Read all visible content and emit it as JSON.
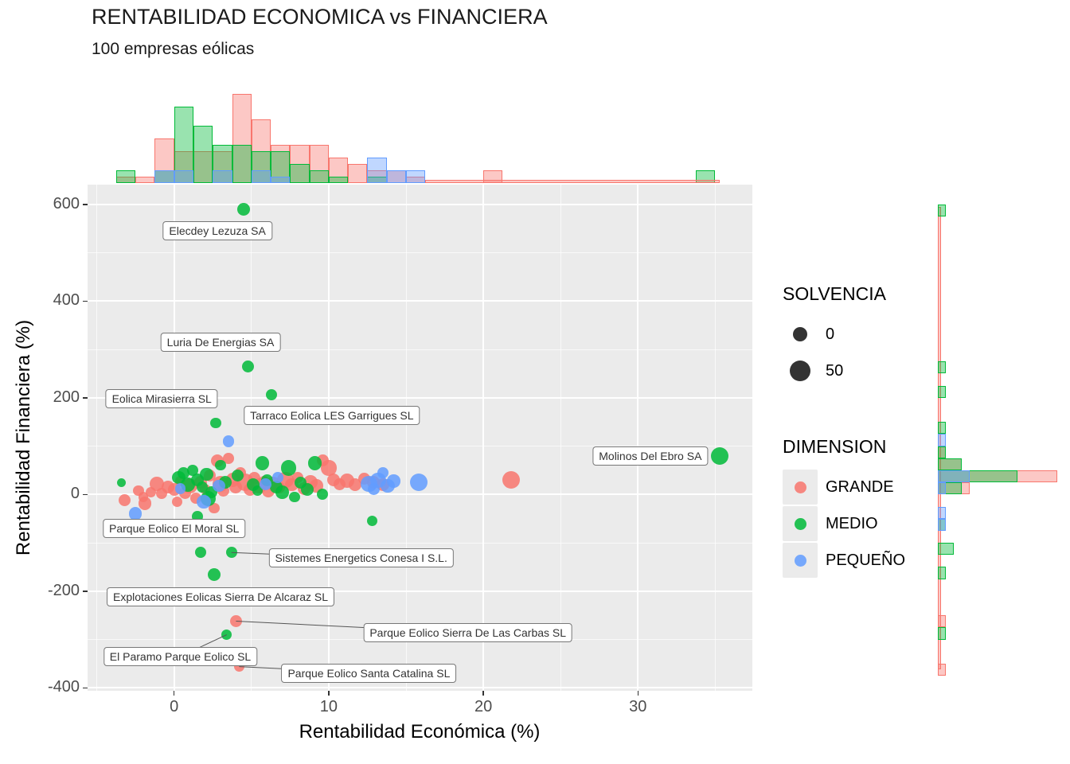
{
  "chart_data": {
    "type": "scatter",
    "title": "RENTABILIDAD ECONOMICA vs FINANCIERA",
    "subtitle": "100 empresas eólicas",
    "xlabel": "Rentabilidad Económica (%)",
    "ylabel": "Rentabilidad Financiera (%)",
    "x_ticks": [
      0,
      10,
      20,
      30
    ],
    "y_ticks": [
      600,
      400,
      200,
      0,
      -200,
      -400
    ],
    "xlim": [
      -5.6,
      37.4
    ],
    "ylim": [
      -406,
      641
    ],
    "grid": true,
    "legend_position": "right",
    "panel_bg": "#EBEBEB",
    "grid_color": "#FFFFFF",
    "size_legend": {
      "title": "SOLVENCIA",
      "items": [
        {
          "label": "0"
        },
        {
          "label": "50"
        }
      ]
    },
    "color_legend": {
      "title": "DIMENSION",
      "items": [
        {
          "label": "GRANDE",
          "color": "#F8766D"
        },
        {
          "label": "MEDIO",
          "color": "#00BA38"
        },
        {
          "label": "PEQUEÑO",
          "color": "#619CFF"
        }
      ]
    },
    "point_format": [
      "x",
      "y",
      "dimension",
      "solvencia"
    ],
    "points": [
      [
        -3.2,
        -12,
        "GRANDE",
        25
      ],
      [
        -2.3,
        8,
        "GRANDE",
        20
      ],
      [
        -2,
        -5,
        "GRANDE",
        15
      ],
      [
        -1.9,
        -18,
        "GRANDE",
        30
      ],
      [
        -1.5,
        5,
        "GRANDE",
        18
      ],
      [
        -1.1,
        22,
        "GRANDE",
        35
      ],
      [
        -0.8,
        2,
        "GRANDE",
        22
      ],
      [
        -0.4,
        15,
        "GRANDE",
        28
      ],
      [
        0,
        10,
        "GRANDE",
        30
      ],
      [
        0.2,
        -15,
        "GRANDE",
        20
      ],
      [
        0.4,
        28,
        "GRANDE",
        20
      ],
      [
        0.7,
        3,
        "GRANDE",
        25
      ],
      [
        1,
        18,
        "GRANDE",
        40
      ],
      [
        1.4,
        -8,
        "GRANDE",
        22
      ],
      [
        1.7,
        25,
        "GRANDE",
        30
      ],
      [
        2,
        12,
        "GRANDE",
        18
      ],
      [
        2.3,
        40,
        "GRANDE",
        25
      ],
      [
        2.6,
        -28,
        "GRANDE",
        20
      ],
      [
        2.8,
        70,
        "GRANDE",
        30
      ],
      [
        3,
        22,
        "GRANDE",
        45
      ],
      [
        3.2,
        8,
        "GRANDE",
        25
      ],
      [
        3.5,
        75,
        "GRANDE",
        20
      ],
      [
        3.8,
        30,
        "GRANDE",
        35
      ],
      [
        4,
        15,
        "GRANDE",
        28
      ],
      [
        4.3,
        45,
        "GRANDE",
        22
      ],
      [
        4.6,
        25,
        "GRANDE",
        50
      ],
      [
        4.9,
        10,
        "GRANDE",
        30
      ],
      [
        5.2,
        35,
        "GRANDE",
        25
      ],
      [
        5.5,
        18,
        "GRANDE",
        40
      ],
      [
        5.8,
        28,
        "GRANDE",
        20
      ],
      [
        6.1,
        8,
        "GRANDE",
        30
      ],
      [
        6.4,
        22,
        "GRANDE",
        35
      ],
      [
        6.8,
        15,
        "GRANDE",
        25
      ],
      [
        7.2,
        30,
        "GRANDE",
        45
      ],
      [
        7.6,
        20,
        "GRANDE",
        30
      ],
      [
        8,
        35,
        "GRANDE",
        22
      ],
      [
        8.4,
        12,
        "GRANDE",
        28
      ],
      [
        8.8,
        25,
        "GRANDE",
        35
      ],
      [
        9.2,
        18,
        "GRANDE",
        30
      ],
      [
        9.6,
        70,
        "GRANDE",
        25
      ],
      [
        10,
        55,
        "GRANDE",
        40
      ],
      [
        10.3,
        30,
        "GRANDE",
        30
      ],
      [
        10.7,
        22,
        "GRANDE",
        25
      ],
      [
        11.2,
        28,
        "GRANDE",
        35
      ],
      [
        11.7,
        20,
        "GRANDE",
        30
      ],
      [
        12.3,
        32,
        "GRANDE",
        25
      ],
      [
        12.9,
        25,
        "GRANDE",
        30
      ],
      [
        13.5,
        20,
        "GRANDE",
        28
      ],
      [
        21.8,
        30,
        "GRANDE",
        50
      ],
      [
        4,
        -262,
        "GRANDE",
        25
      ],
      [
        4.2,
        -356,
        "GRANDE",
        20
      ],
      [
        -3.4,
        25,
        "MEDIO",
        12
      ],
      [
        0.3,
        35,
        "MEDIO",
        30
      ],
      [
        0.6,
        45,
        "MEDIO",
        25
      ],
      [
        0.9,
        20,
        "MEDIO",
        35
      ],
      [
        1.2,
        50,
        "MEDIO",
        20
      ],
      [
        1.5,
        30,
        "MEDIO",
        28
      ],
      [
        1.8,
        15,
        "MEDIO",
        22
      ],
      [
        2.1,
        42,
        "MEDIO",
        30
      ],
      [
        2.2,
        -8,
        "MEDIO",
        40
      ],
      [
        2.4,
        5,
        "MEDIO",
        25
      ],
      [
        2.7,
        148,
        "MEDIO",
        20
      ],
      [
        3,
        60,
        "MEDIO",
        18
      ],
      [
        3.3,
        25,
        "MEDIO",
        30
      ],
      [
        3.7,
        -120,
        "MEDIO",
        22
      ],
      [
        4.1,
        40,
        "MEDIO",
        25
      ],
      [
        4.5,
        590,
        "MEDIO",
        28
      ],
      [
        4.8,
        265,
        "MEDIO",
        25
      ],
      [
        5.1,
        20,
        "MEDIO",
        30
      ],
      [
        5.4,
        8,
        "MEDIO",
        20
      ],
      [
        5.7,
        65,
        "MEDIO",
        35
      ],
      [
        6,
        30,
        "MEDIO",
        25
      ],
      [
        6.3,
        207,
        "MEDIO",
        22
      ],
      [
        6.6,
        15,
        "MEDIO",
        28
      ],
      [
        7,
        5,
        "MEDIO",
        30
      ],
      [
        7.4,
        55,
        "MEDIO",
        40
      ],
      [
        7.8,
        -5,
        "MEDIO",
        20
      ],
      [
        8.2,
        25,
        "MEDIO",
        25
      ],
      [
        8.6,
        10,
        "MEDIO",
        30
      ],
      [
        9.1,
        65,
        "MEDIO",
        35
      ],
      [
        9.6,
        0,
        "MEDIO",
        22
      ],
      [
        12.8,
        -55,
        "MEDIO",
        18
      ],
      [
        2.6,
        -165,
        "MEDIO",
        28
      ],
      [
        1.7,
        -120,
        "MEDIO",
        22
      ],
      [
        3.4,
        -290,
        "MEDIO",
        18
      ],
      [
        1.5,
        -45,
        "MEDIO",
        20
      ],
      [
        35.3,
        80,
        "MEDIO",
        50
      ],
      [
        -2.5,
        -40,
        "PEQUEÑO",
        30
      ],
      [
        0.4,
        12,
        "PEQUEÑO",
        20
      ],
      [
        1.9,
        -15,
        "PEQUEÑO",
        35
      ],
      [
        2.9,
        18,
        "PEQUEÑO",
        28
      ],
      [
        3.5,
        110,
        "PEQUEÑO",
        22
      ],
      [
        5.9,
        22,
        "PEQUEÑO",
        25
      ],
      [
        6.7,
        35,
        "PEQUEÑO",
        20
      ],
      [
        12.6,
        22,
        "PEQUEÑO",
        45
      ],
      [
        12.9,
        12,
        "PEQUEÑO",
        25
      ],
      [
        13.2,
        30,
        "PEQUEÑO",
        40
      ],
      [
        13.5,
        45,
        "PEQUEÑO",
        22
      ],
      [
        13.8,
        18,
        "PEQUEÑO",
        35
      ],
      [
        14.2,
        28,
        "PEQUEÑO",
        30
      ],
      [
        15.8,
        25,
        "PEQUEÑO",
        50
      ]
    ],
    "annotations": [
      {
        "text": "Elecdey Lezuza SA",
        "bx": 2.8,
        "by": 545,
        "tx": 4.5,
        "ty": 590,
        "line": false
      },
      {
        "text": "Luria De Energias SA",
        "bx": 3.0,
        "by": 315,
        "tx": 4.8,
        "ty": 265,
        "line": false
      },
      {
        "text": "Eolica Mirasierra SL",
        "bx": -0.8,
        "by": 198,
        "tx": 2.7,
        "ty": 148,
        "line": false
      },
      {
        "text": "Tarraco Eolica LES Garrigues SL",
        "bx": 10.2,
        "by": 164,
        "tx": 6.3,
        "ty": 207,
        "line": false
      },
      {
        "text": "Molinos Del Ebro SA",
        "bx": 30.8,
        "by": 80,
        "tx": 35.3,
        "ty": 80,
        "line": false
      },
      {
        "text": "Parque Eolico El Moral SL",
        "bx": 0.0,
        "by": -70,
        "tx": 2.6,
        "ty": -28,
        "line": false
      },
      {
        "text": "Sistemes Energetics Conesa I S.L.",
        "bx": 12.1,
        "by": -131,
        "tx": 3.7,
        "ty": -120,
        "line": true
      },
      {
        "text": "Explotaciones Eolicas Sierra De Alcaraz SL",
        "bx": 3.0,
        "by": -212,
        "tx": 2.6,
        "ty": -165,
        "line": false
      },
      {
        "text": "Parque Eolico Sierra De Las Carbas SL",
        "bx": 19.0,
        "by": -286,
        "tx": 4.0,
        "ty": -262,
        "line": true
      },
      {
        "text": "El Paramo Parque Eolico SL",
        "bx": 0.4,
        "by": -335,
        "tx": 3.4,
        "ty": -290,
        "line": true
      },
      {
        "text": "Parque Eolico Santa Catalina SL",
        "bx": 12.6,
        "by": -369,
        "tx": 4.2,
        "ty": -356,
        "line": true
      }
    ],
    "marginal_top_histogram": {
      "bin_width": 1.25,
      "series": [
        {
          "name": "GRANDE",
          "bars": [
            {
              "x0": -3.75,
              "c": 1
            },
            {
              "x0": -2.5,
              "c": 1
            },
            {
              "x0": -1.25,
              "c": 7
            },
            {
              "x0": 0,
              "c": 5
            },
            {
              "x0": 1.25,
              "c": 5
            },
            {
              "x0": 2.5,
              "c": 5
            },
            {
              "x0": 3.75,
              "c": 14
            },
            {
              "x0": 5,
              "c": 10
            },
            {
              "x0": 6.25,
              "c": 6
            },
            {
              "x0": 7.5,
              "c": 6
            },
            {
              "x0": 8.75,
              "c": 6
            },
            {
              "x0": 10,
              "c": 4
            },
            {
              "x0": 11.25,
              "c": 3
            },
            {
              "x0": 12.5,
              "c": 2
            },
            {
              "x0": 13.75,
              "c": 2
            },
            {
              "x0": 15,
              "c": 1
            },
            {
              "x0": 20,
              "c": 2
            }
          ]
        },
        {
          "name": "MEDIO",
          "bars": [
            {
              "x0": -3.75,
              "c": 2
            },
            {
              "x0": -1.25,
              "c": 2
            },
            {
              "x0": 0,
              "c": 12
            },
            {
              "x0": 1.25,
              "c": 9
            },
            {
              "x0": 2.5,
              "c": 6
            },
            {
              "x0": 3.75,
              "c": 6
            },
            {
              "x0": 5,
              "c": 5
            },
            {
              "x0": 6.25,
              "c": 5
            },
            {
              "x0": 7.5,
              "c": 3
            },
            {
              "x0": 8.75,
              "c": 2
            },
            {
              "x0": 10,
              "c": 1
            },
            {
              "x0": 12.5,
              "c": 1
            },
            {
              "x0": 33.75,
              "c": 2
            }
          ]
        },
        {
          "name": "PEQUEÑO",
          "bars": [
            {
              "x0": -1.25,
              "c": 2
            },
            {
              "x0": 0,
              "c": 2
            },
            {
              "x0": 2.5,
              "c": 2
            },
            {
              "x0": 5,
              "c": 2
            },
            {
              "x0": 6.25,
              "c": 1
            },
            {
              "x0": 12.5,
              "c": 4
            },
            {
              "x0": 13.75,
              "c": 2
            },
            {
              "x0": 15,
              "c": 2
            }
          ]
        }
      ]
    },
    "marginal_right_histogram": {
      "bin_width": 25,
      "series": [
        {
          "name": "GRANDE",
          "bars": [
            {
              "y0": 25,
              "c": 15
            },
            {
              "y0": 0,
              "c": 4
            },
            {
              "y0": 50,
              "c": 3
            },
            {
              "y0": 75,
              "c": 1
            },
            {
              "y0": -275,
              "c": 1
            },
            {
              "y0": -375,
              "c": 1
            }
          ]
        },
        {
          "name": "MEDIO",
          "bars": [
            {
              "y0": 575,
              "c": 1
            },
            {
              "y0": 250,
              "c": 1
            },
            {
              "y0": 200,
              "c": 1
            },
            {
              "y0": 125,
              "c": 1
            },
            {
              "y0": 25,
              "c": 10
            },
            {
              "y0": 0,
              "c": 3
            },
            {
              "y0": 50,
              "c": 3
            },
            {
              "y0": 75,
              "c": 1
            },
            {
              "y0": -75,
              "c": 1
            },
            {
              "y0": -125,
              "c": 2
            },
            {
              "y0": -175,
              "c": 1
            },
            {
              "y0": -300,
              "c": 1
            }
          ]
        },
        {
          "name": "PEQUEÑO",
          "bars": [
            {
              "y0": 100,
              "c": 1
            },
            {
              "y0": 25,
              "c": 4
            },
            {
              "y0": 0,
              "c": 1
            },
            {
              "y0": -50,
              "c": 1
            },
            {
              "y0": -75,
              "c": 1
            }
          ]
        }
      ]
    }
  }
}
